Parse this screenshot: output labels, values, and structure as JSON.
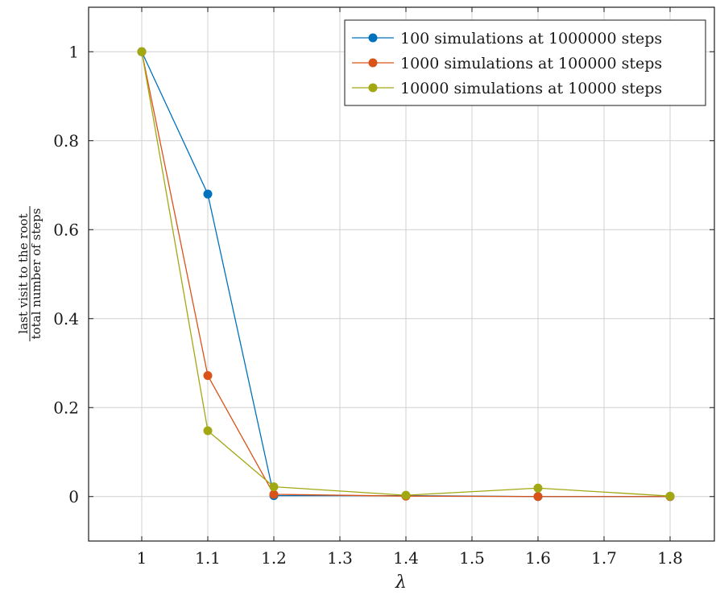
{
  "chart_data": {
    "type": "line",
    "xlabel": "λ",
    "ylabel_numerator": "last visit to the root",
    "ylabel_denominator": "total number of steps",
    "x_categories": [
      "1",
      "1.1",
      "1.2",
      "1.3",
      "1.4",
      "1.5",
      "1.6",
      "1.7",
      "1.8"
    ],
    "y_ticks": [
      "0",
      "0.2",
      "0.4",
      "0.6",
      "0.8",
      "1"
    ],
    "y_tick_values": [
      0,
      0.2,
      0.4,
      0.6,
      0.8,
      1
    ],
    "ylim": [
      -0.1,
      1.1
    ],
    "grid": true,
    "legend_position": "top-right",
    "series": [
      {
        "name": "100 simulations at 1000000 steps",
        "color": "#0072BD",
        "x": [
          "1",
          "1.1",
          "1.2",
          "1.4",
          "1.6",
          "1.8"
        ],
        "values": [
          1,
          0.68,
          0.002,
          0.002,
          0.0,
          0.0
        ]
      },
      {
        "name": "1000 simulations at 100000 steps",
        "color": "#D95319",
        "x": [
          "1",
          "1.1",
          "1.2",
          "1.4",
          "1.6",
          "1.8"
        ],
        "values": [
          1,
          0.272,
          0.005,
          0.001,
          0.0,
          0.0
        ]
      },
      {
        "name": "10000 simulations at 10000 steps",
        "color": "#A2A812",
        "x": [
          "1",
          "1.1",
          "1.2",
          "1.4",
          "1.6",
          "1.8"
        ],
        "values": [
          1,
          0.148,
          0.022,
          0.003,
          0.019,
          0.001
        ]
      }
    ]
  }
}
